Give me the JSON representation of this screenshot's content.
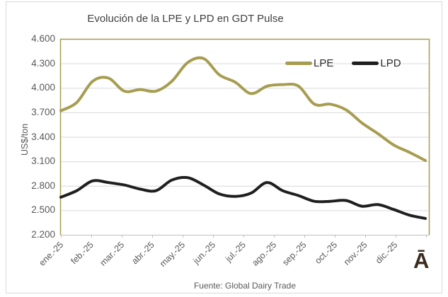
{
  "watermark": "Ā",
  "colors": {
    "gridline": "#d9d9d9",
    "axis_line": "#bfbfbf",
    "plot_border": "#a79d51",
    "frame_border": "#d9d9d9",
    "title_text": "#3f3f3f",
    "axis_text": "#595959",
    "watermark_text": "#3b2b1f"
  },
  "y_axis": {
    "title": "US$/ton",
    "tick_labels": [
      "4.600",
      "4.300",
      "4.000",
      "3.700",
      "3.400",
      "3.100",
      "2.800",
      "2.500",
      "2.200"
    ],
    "tick_values": [
      4.6,
      4.3,
      4.0,
      3.7,
      3.4,
      3.1,
      2.8,
      2.5,
      2.2
    ]
  },
  "chart_data": {
    "type": "line",
    "title": "Evolución de la LPE y LPD en GDT Pulse",
    "ylabel": "US$/ton",
    "xlabel": "",
    "ylim": [
      2.2,
      4.6
    ],
    "y_step": 0.3,
    "grid": "horizontal",
    "legend_position": "inside-top-right",
    "smoothed_lines": true,
    "source": "Fuente: Global Dairy Trade",
    "categories": [
      "ene.-25",
      "feb.-25",
      "mar.-25",
      "abr.-25",
      "may.-25",
      "jun.-25",
      "jul.-25",
      "ago.-25",
      "sep.-25",
      "oct.-25",
      "nov.-25",
      "dic.-25"
    ],
    "samples_per_category": 2,
    "series": [
      {
        "name": "LPE",
        "color": "#a79d51",
        "values": [
          3.72,
          3.82,
          4.08,
          4.12,
          3.96,
          3.98,
          3.96,
          4.08,
          4.31,
          4.36,
          4.16,
          4.07,
          3.93,
          4.02,
          4.04,
          4.02,
          3.8,
          3.8,
          3.73,
          3.57,
          3.44,
          3.3,
          3.21,
          3.11
        ]
      },
      {
        "name": "LPD",
        "color": "#1f1f1f",
        "values": [
          2.66,
          2.74,
          2.86,
          2.84,
          2.81,
          2.76,
          2.74,
          2.87,
          2.9,
          2.81,
          2.7,
          2.67,
          2.71,
          2.84,
          2.74,
          2.68,
          2.61,
          2.61,
          2.62,
          2.55,
          2.57,
          2.51,
          2.44,
          2.4
        ]
      }
    ]
  }
}
